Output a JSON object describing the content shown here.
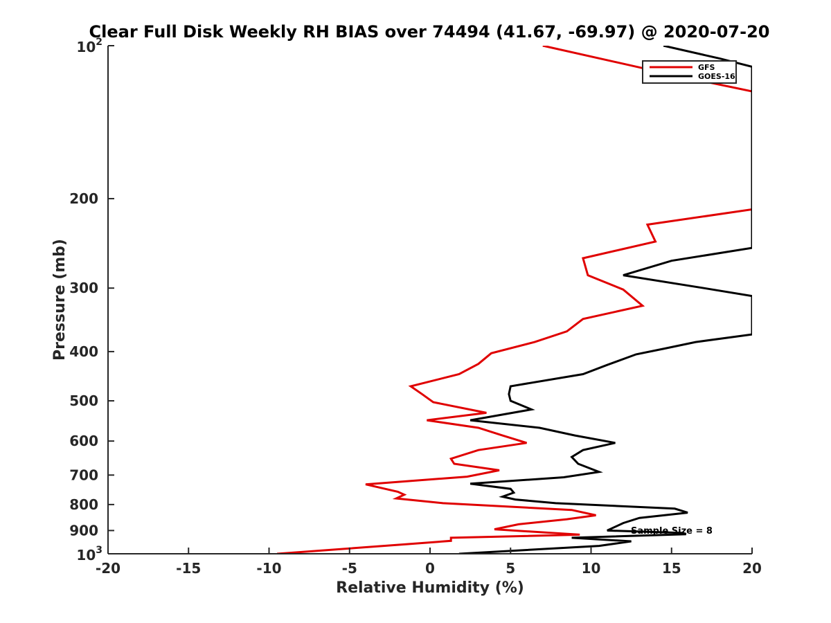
{
  "chart_data": {
    "type": "line",
    "title": "Clear Full Disk Weekly RH BIAS over 74494 (41.67, -69.97) @ 2020-07-20",
    "xlabel": "Relative Humidity (%)",
    "ylabel": "Pressure (mb)",
    "xlim": [
      -20,
      20
    ],
    "ylim": [
      100,
      1000
    ],
    "y_scale": "log",
    "y_reversed": true,
    "grid": false,
    "legend_position": "top-right",
    "x_ticks": [
      "-20",
      "-15",
      "-10",
      "-5",
      "0",
      "5",
      "10",
      "15",
      "20"
    ],
    "y_ticks": [
      {
        "value": 100,
        "base": "10",
        "exp": "2"
      },
      {
        "value": 200,
        "label": "200"
      },
      {
        "value": 300,
        "label": "300"
      },
      {
        "value": 400,
        "label": "400"
      },
      {
        "value": 500,
        "label": "500"
      },
      {
        "value": 600,
        "label": "600"
      },
      {
        "value": 700,
        "label": "700"
      },
      {
        "value": 800,
        "label": "800"
      },
      {
        "value": 900,
        "label": "900"
      },
      {
        "value": 1000,
        "base": "10",
        "exp": "3"
      }
    ],
    "annotation": "Sample Size = 8",
    "series": [
      {
        "name": "GFS",
        "color": "#e00000",
        "points": [
          [
            7.0,
            100
          ],
          [
            15.0,
            114
          ],
          [
            20.0,
            123
          ],
          [
            20.0,
            210
          ],
          [
            13.5,
            225
          ],
          [
            14.0,
            243
          ],
          [
            9.5,
            262
          ],
          [
            9.8,
            283
          ],
          [
            12.0,
            302
          ],
          [
            13.2,
            325
          ],
          [
            9.5,
            345
          ],
          [
            8.5,
            365
          ],
          [
            6.5,
            383
          ],
          [
            3.8,
            403
          ],
          [
            3.0,
            423
          ],
          [
            1.8,
            443
          ],
          [
            -1.2,
            468
          ],
          [
            -0.5,
            485
          ],
          [
            0.2,
            503
          ],
          [
            3.5,
            528
          ],
          [
            -0.2,
            546
          ],
          [
            3.0,
            565
          ],
          [
            4.5,
            585
          ],
          [
            6.0,
            605
          ],
          [
            3.0,
            625
          ],
          [
            1.3,
            650
          ],
          [
            1.5,
            665
          ],
          [
            4.3,
            685
          ],
          [
            2.3,
            705
          ],
          [
            -4.0,
            730
          ],
          [
            -2.0,
            755
          ],
          [
            -1.6,
            765
          ],
          [
            -2.1,
            778
          ],
          [
            0.8,
            795
          ],
          [
            8.8,
            820
          ],
          [
            10.3,
            840
          ],
          [
            8.5,
            855
          ],
          [
            5.5,
            875
          ],
          [
            4.0,
            895
          ],
          [
            9.3,
            917
          ],
          [
            1.3,
            930
          ],
          [
            1.3,
            943
          ],
          [
            -1.5,
            958
          ],
          [
            -9.5,
            1000
          ]
        ]
      },
      {
        "name": "GOES-16",
        "color": "#000000",
        "points": [
          [
            14.5,
            100
          ],
          [
            18.0,
            106
          ],
          [
            20.0,
            110
          ],
          [
            20.0,
            250
          ],
          [
            15.0,
            265
          ],
          [
            12.0,
            283
          ],
          [
            17.0,
            300
          ],
          [
            20.0,
            311
          ],
          [
            20.0,
            370
          ],
          [
            16.5,
            383
          ],
          [
            14.5,
            395
          ],
          [
            12.8,
            405
          ],
          [
            11.0,
            425
          ],
          [
            9.5,
            443
          ],
          [
            5.0,
            468
          ],
          [
            4.9,
            485
          ],
          [
            5.0,
            500
          ],
          [
            6.3,
            520
          ],
          [
            2.5,
            546
          ],
          [
            6.8,
            565
          ],
          [
            9.0,
            585
          ],
          [
            11.5,
            605
          ],
          [
            9.5,
            625
          ],
          [
            8.8,
            645
          ],
          [
            9.2,
            665
          ],
          [
            10.5,
            690
          ],
          [
            8.3,
            707
          ],
          [
            2.5,
            728
          ],
          [
            5.0,
            745
          ],
          [
            5.2,
            758
          ],
          [
            4.5,
            772
          ],
          [
            5.3,
            782
          ],
          [
            7.8,
            795
          ],
          [
            15.2,
            815
          ],
          [
            16.0,
            830
          ],
          [
            13.0,
            850
          ],
          [
            12.0,
            870
          ],
          [
            11.0,
            900
          ],
          [
            15.7,
            910
          ],
          [
            15.9,
            915
          ],
          [
            8.8,
            930
          ],
          [
            12.5,
            945
          ],
          [
            10.5,
            965
          ],
          [
            1.8,
            1000
          ]
        ]
      }
    ]
  }
}
